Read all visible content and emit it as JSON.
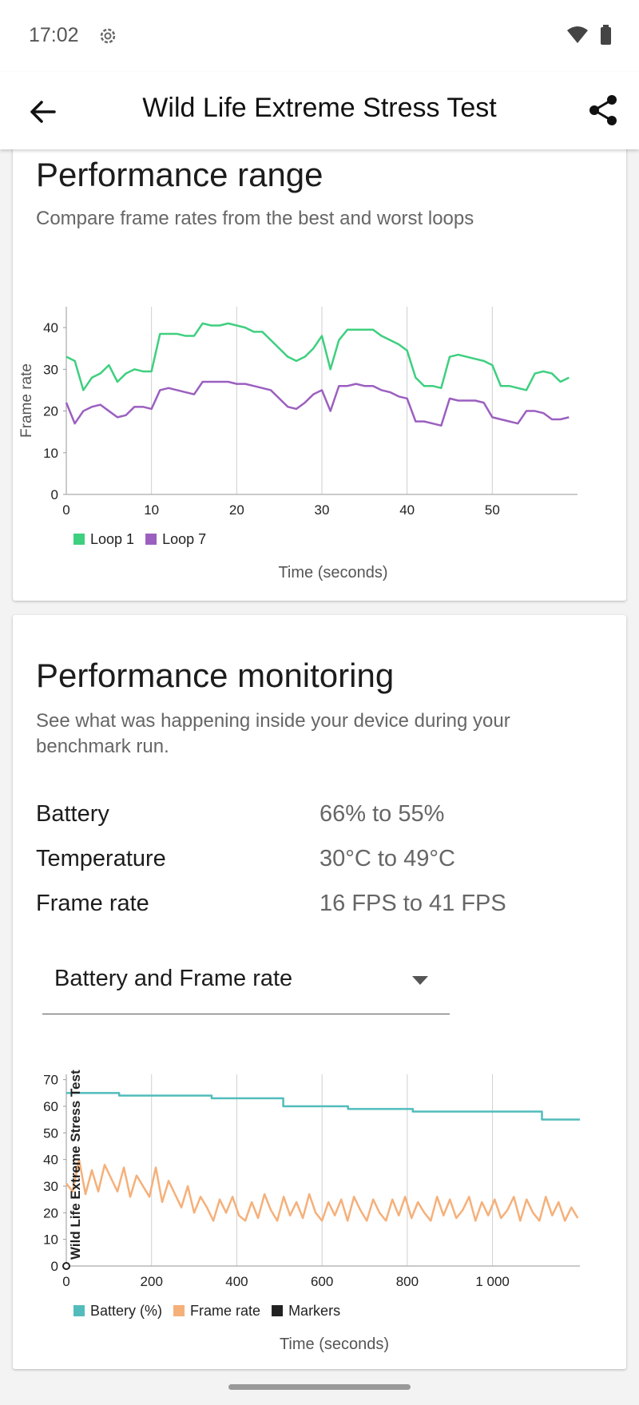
{
  "status_bar": {
    "time": "17:02"
  },
  "header": {
    "title": "Wild Life Extreme Stress Test"
  },
  "performance_range": {
    "title": "Performance range",
    "subtitle": "Compare frame rates from the best and worst loops",
    "chart_data": {
      "type": "line",
      "xlabel": "Time (seconds)",
      "ylabel": "Frame rate",
      "xlim": [
        0,
        60
      ],
      "xticks": [
        0,
        10,
        20,
        30,
        40,
        50
      ],
      "ylim": [
        0,
        45
      ],
      "yticks": [
        0,
        10,
        20,
        30,
        40
      ],
      "grid": "x",
      "x": [
        0,
        1,
        2,
        3,
        4,
        5,
        6,
        7,
        8,
        9,
        10,
        11,
        12,
        13,
        14,
        15,
        16,
        17,
        18,
        19,
        20,
        21,
        22,
        23,
        24,
        25,
        26,
        27,
        28,
        29,
        30,
        31,
        32,
        33,
        34,
        35,
        36,
        37,
        38,
        39,
        40,
        41,
        42,
        43,
        44,
        45,
        46,
        47,
        48,
        49,
        50,
        51,
        52,
        53,
        54,
        55,
        56,
        57,
        58,
        59
      ],
      "series": [
        {
          "name": "Loop 1",
          "color": "#3ecf7f",
          "values": [
            33,
            32,
            25,
            28,
            29,
            31,
            27,
            29,
            30,
            29.5,
            29.5,
            38.5,
            38.5,
            38.5,
            38,
            38,
            41,
            40.5,
            40.5,
            41,
            40.5,
            40,
            39,
            39,
            37,
            35,
            33,
            32,
            33,
            35,
            38,
            30,
            37,
            39.5,
            39.5,
            39.5,
            39.5,
            38,
            37,
            36,
            34.5,
            28,
            26,
            26,
            25.5,
            33,
            33.5,
            33,
            32.5,
            32,
            31,
            26,
            26,
            25.5,
            25,
            29,
            29.5,
            29,
            27,
            28
          ]
        },
        {
          "name": "Loop 7",
          "color": "#9b5fc0",
          "values": [
            22,
            17,
            20,
            21,
            21.5,
            20,
            18.5,
            19,
            21,
            21,
            20.5,
            25,
            25.5,
            25,
            24.5,
            24,
            27,
            27,
            27,
            27,
            26.5,
            26.5,
            26,
            25.5,
            25,
            23,
            21,
            20.5,
            22,
            24,
            25,
            20,
            26,
            26,
            26.5,
            26,
            26,
            25,
            24.5,
            23.5,
            23,
            17.5,
            17.5,
            17,
            16.5,
            23,
            22.5,
            22.5,
            22.5,
            22,
            18.5,
            18,
            17.5,
            17,
            20,
            20,
            19.5,
            18,
            18,
            18.5
          ]
        }
      ]
    }
  },
  "performance_monitoring": {
    "title": "Performance monitoring",
    "subtitle": "See what was happening inside your device during your benchmark run.",
    "stats": [
      {
        "label": "Battery",
        "value": "66% to 55%"
      },
      {
        "label": "Temperature",
        "value": "30°C to 49°C"
      },
      {
        "label": "Frame rate",
        "value": "16 FPS to 41 FPS"
      }
    ],
    "dropdown": "Battery and Frame rate",
    "chart_data": {
      "type": "line",
      "xlabel": "Time (seconds)",
      "xlim": [
        0,
        1205
      ],
      "xticks": [
        0,
        200,
        400,
        600,
        800,
        {
          "value": 1000,
          "label": "1 000"
        }
      ],
      "ylim": [
        0,
        72
      ],
      "yticks": [
        0,
        10,
        20,
        30,
        40,
        50,
        60,
        70
      ],
      "grid": "x",
      "series": [
        {
          "name": "Battery (%)",
          "color": "#52bcbc",
          "x": [
            0,
            124,
            124,
            341,
            341,
            509,
            509,
            661,
            661,
            813,
            813,
            1116,
            1116,
            1205
          ],
          "values": [
            65,
            65,
            64,
            64,
            63,
            63,
            60,
            60,
            59,
            59,
            58,
            58,
            55,
            55
          ]
        },
        {
          "name": "Frame rate",
          "color": "#f5b07a",
          "x": [
            0,
            15,
            30,
            45,
            60,
            75,
            90,
            105,
            120,
            135,
            150,
            165,
            180,
            195,
            210,
            225,
            240,
            255,
            270,
            285,
            300,
            315,
            330,
            345,
            360,
            375,
            390,
            405,
            420,
            435,
            450,
            465,
            480,
            495,
            510,
            525,
            540,
            555,
            570,
            585,
            600,
            615,
            630,
            645,
            660,
            675,
            690,
            705,
            720,
            735,
            750,
            765,
            780,
            795,
            810,
            825,
            840,
            855,
            870,
            885,
            900,
            915,
            930,
            945,
            960,
            975,
            990,
            1005,
            1020,
            1035,
            1050,
            1065,
            1080,
            1095,
            1110,
            1125,
            1140,
            1155,
            1170,
            1185,
            1200
          ],
          "values": [
            31,
            28,
            40,
            27,
            36,
            28,
            38,
            33,
            28,
            37,
            26,
            34,
            30,
            26,
            37,
            24,
            32,
            27,
            22,
            30,
            20,
            26,
            22,
            17,
            25,
            20,
            26,
            19,
            17,
            24,
            18,
            27,
            21,
            17,
            26,
            19,
            24,
            18,
            27,
            20,
            17,
            24,
            19,
            25,
            17,
            26,
            21,
            17,
            25,
            20,
            17,
            25,
            19,
            26,
            18,
            24,
            20,
            17,
            26,
            19,
            25,
            18,
            21,
            26,
            17,
            24,
            19,
            25,
            18,
            21,
            26,
            17,
            25,
            20,
            17,
            26,
            19,
            24,
            17,
            22,
            18
          ]
        }
      ],
      "markers": {
        "name": "Markers",
        "color": "#222222",
        "items": [
          {
            "x": 0,
            "label": "Wild Life Extreme Stress Test"
          }
        ]
      }
    }
  }
}
